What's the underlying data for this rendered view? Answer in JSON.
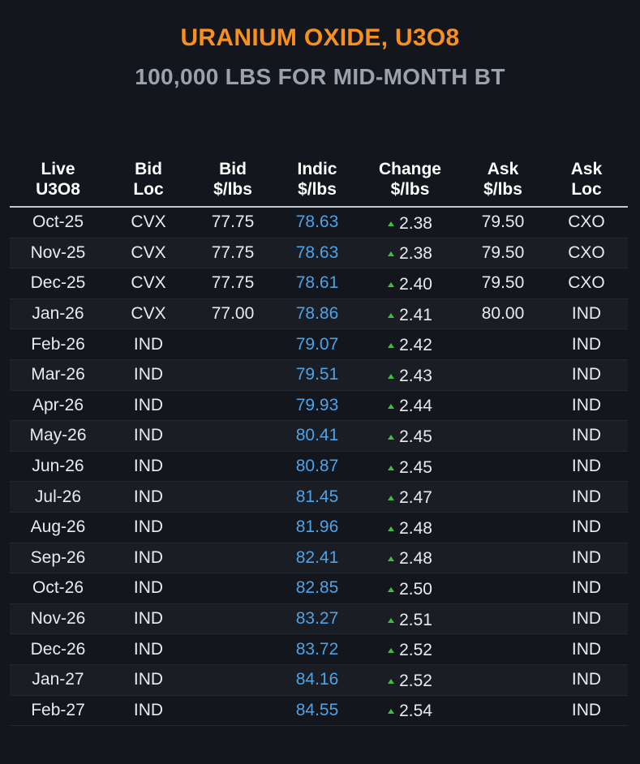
{
  "title": "URANIUM OXIDE, U3O8",
  "subtitle": "100,000 LBS FOR MID-MONTH BT",
  "columns": [
    {
      "line1": "Live",
      "line2": "U3O8"
    },
    {
      "line1": "Bid",
      "line2": "Loc"
    },
    {
      "line1": "Bid",
      "line2": "$/lbs"
    },
    {
      "line1": "Indic",
      "line2": "$/lbs"
    },
    {
      "line1": "Change",
      "line2": "$/lbs"
    },
    {
      "line1": "Ask",
      "line2": "$/lbs"
    },
    {
      "line1": "Ask",
      "line2": "Loc"
    }
  ],
  "rows": [
    {
      "month": "Oct-25",
      "bid_loc": "CVX",
      "bid": "77.75",
      "indic": "78.63",
      "change": "2.38",
      "ask": "79.50",
      "ask_loc": "CXO"
    },
    {
      "month": "Nov-25",
      "bid_loc": "CVX",
      "bid": "77.75",
      "indic": "78.63",
      "change": "2.38",
      "ask": "79.50",
      "ask_loc": "CXO"
    },
    {
      "month": "Dec-25",
      "bid_loc": "CVX",
      "bid": "77.75",
      "indic": "78.61",
      "change": "2.40",
      "ask": "79.50",
      "ask_loc": "CXO"
    },
    {
      "month": "Jan-26",
      "bid_loc": "CVX",
      "bid": "77.00",
      "indic": "78.86",
      "change": "2.41",
      "ask": "80.00",
      "ask_loc": "IND"
    },
    {
      "month": "Feb-26",
      "bid_loc": "IND",
      "bid": "",
      "indic": "79.07",
      "change": "2.42",
      "ask": "",
      "ask_loc": "IND"
    },
    {
      "month": "Mar-26",
      "bid_loc": "IND",
      "bid": "",
      "indic": "79.51",
      "change": "2.43",
      "ask": "",
      "ask_loc": "IND"
    },
    {
      "month": "Apr-26",
      "bid_loc": "IND",
      "bid": "",
      "indic": "79.93",
      "change": "2.44",
      "ask": "",
      "ask_loc": "IND"
    },
    {
      "month": "May-26",
      "bid_loc": "IND",
      "bid": "",
      "indic": "80.41",
      "change": "2.45",
      "ask": "",
      "ask_loc": "IND"
    },
    {
      "month": "Jun-26",
      "bid_loc": "IND",
      "bid": "",
      "indic": "80.87",
      "change": "2.45",
      "ask": "",
      "ask_loc": "IND"
    },
    {
      "month": "Jul-26",
      "bid_loc": "IND",
      "bid": "",
      "indic": "81.45",
      "change": "2.47",
      "ask": "",
      "ask_loc": "IND"
    },
    {
      "month": "Aug-26",
      "bid_loc": "IND",
      "bid": "",
      "indic": "81.96",
      "change": "2.48",
      "ask": "",
      "ask_loc": "IND"
    },
    {
      "month": "Sep-26",
      "bid_loc": "IND",
      "bid": "",
      "indic": "82.41",
      "change": "2.48",
      "ask": "",
      "ask_loc": "IND"
    },
    {
      "month": "Oct-26",
      "bid_loc": "IND",
      "bid": "",
      "indic": "82.85",
      "change": "2.50",
      "ask": "",
      "ask_loc": "IND"
    },
    {
      "month": "Nov-26",
      "bid_loc": "IND",
      "bid": "",
      "indic": "83.27",
      "change": "2.51",
      "ask": "",
      "ask_loc": "IND"
    },
    {
      "month": "Dec-26",
      "bid_loc": "IND",
      "bid": "",
      "indic": "83.72",
      "change": "2.52",
      "ask": "",
      "ask_loc": "IND"
    },
    {
      "month": "Jan-27",
      "bid_loc": "IND",
      "bid": "",
      "indic": "84.16",
      "change": "2.52",
      "ask": "",
      "ask_loc": "IND"
    },
    {
      "month": "Feb-27",
      "bid_loc": "IND",
      "bid": "",
      "indic": "84.55",
      "change": "2.54",
      "ask": "",
      "ask_loc": "IND"
    }
  ],
  "change_icon": "triangle-up-icon",
  "colors": {
    "title": "#f7901e",
    "subtitle": "#9aa2ad",
    "indic": "#4da3e8",
    "change_up": "#3fbf3f",
    "background": "#13161d"
  }
}
